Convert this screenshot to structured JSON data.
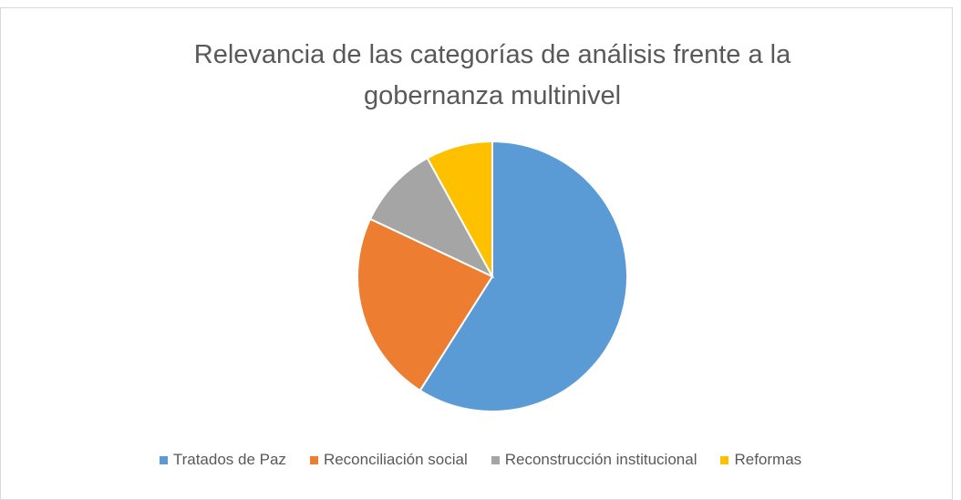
{
  "chart_data": {
    "type": "pie",
    "title": "Relevancia de las categorías de análisis frente a la gobernanza multinivel",
    "categories": [
      "Tratados de Paz",
      "Reconciliación social",
      "Reconstrucción institucional",
      "Reformas"
    ],
    "values": [
      59,
      23,
      10,
      8
    ],
    "colors": [
      "#5b9bd5",
      "#ed7d31",
      "#a5a5a5",
      "#ffc000"
    ],
    "legend": "bottom"
  }
}
